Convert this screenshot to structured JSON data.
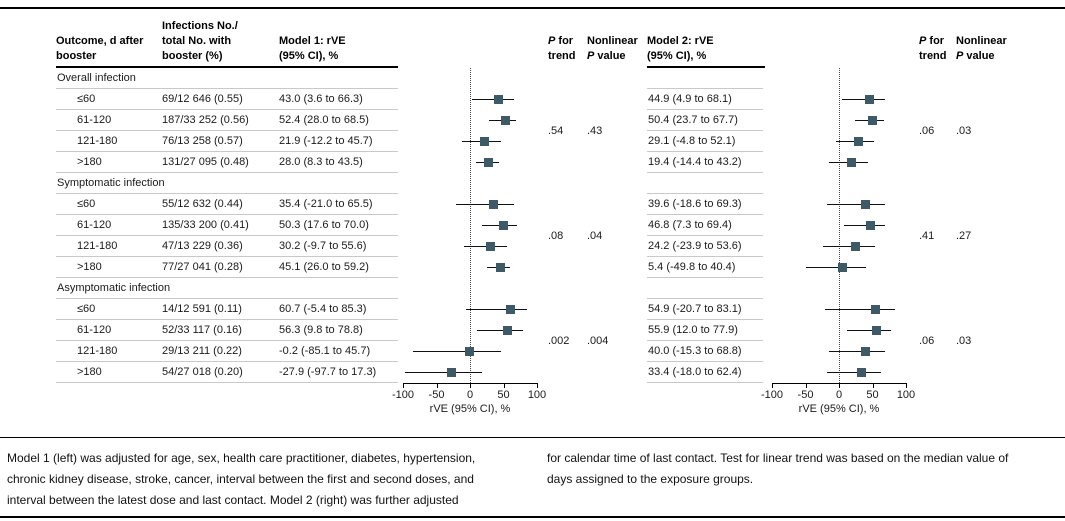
{
  "colors": {
    "marker": "#3e5a66",
    "ci_line": "#111111",
    "separator": "#c9c9c9",
    "rule": "#000000",
    "zero_line": "#444444"
  },
  "header": {
    "outcome": [
      "Outcome, d after",
      "booster"
    ],
    "infections": [
      "Infections No./",
      "total No. with",
      "booster (%)"
    ],
    "model1": [
      "Model 1: rVE",
      "(95% CI), %"
    ],
    "model2": [
      "Model 2: rVE",
      "(95% CI), %"
    ],
    "p": "P",
    "for_suffix": " for",
    "trend": "trend",
    "nonlinear": "Nonlinear",
    "value_suffix": " value"
  },
  "table": {
    "sections": [
      {
        "label": "Overall infection",
        "rows": [
          {
            "outcome": "≤60",
            "infections": "69/12 646 (0.55)",
            "m1": "43.0 (3.6 to 66.3)",
            "m2": "44.9 (4.9 to 68.1)"
          },
          {
            "outcome": "61-120",
            "infections": "187/33 252 (0.56)",
            "m1": "52.4 (28.0 to 68.5)",
            "m2": "50.4 (23.7 to 67.7)"
          },
          {
            "outcome": "121-180",
            "infections": "76/13 258 (0.57)",
            "m1": "21.9 (-12.2 to 45.7)",
            "m2": "29.1 (-4.8 to 52.1)"
          },
          {
            "outcome": ">180",
            "infections": "131/27 095 (0.48)",
            "m1": "28.0 (8.3 to 43.5)",
            "m2": "19.4 (-14.4 to 43.2)"
          }
        ]
      },
      {
        "label": "Symptomatic infection",
        "rows": [
          {
            "outcome": "≤60",
            "infections": "55/12 632 (0.44)",
            "m1": "35.4 (-21.0 to 65.5)",
            "m2": "39.6 (-18.6 to 69.3)"
          },
          {
            "outcome": "61-120",
            "infections": "135/33 200 (0.41)",
            "m1": "50.3 (17.6 to 70.0)",
            "m2": "46.8 (7.3 to 69.4)"
          },
          {
            "outcome": "121-180",
            "infections": "47/13 229 (0.36)",
            "m1": "30.2 (-9.7 to 55.6)",
            "m2": "24.2 (-23.9 to 53.6)"
          },
          {
            "outcome": ">180",
            "infections": "77/27 041 (0.28)",
            "m1": "45.1 (26.0 to 59.2)",
            "m2": "5.4 (-49.8 to 40.4)"
          }
        ]
      },
      {
        "label": "Asymptomatic infection",
        "rows": [
          {
            "outcome": "≤60",
            "infections": "14/12 591 (0.11)",
            "m1": "60.7 (-5.4 to 85.3)",
            "m2": "54.9 (-20.7 to 83.1)"
          },
          {
            "outcome": "61-120",
            "infections": "52/33 117 (0.16)",
            "m1": "56.3 (9.8 to 78.8)",
            "m2": "55.9 (12.0 to 77.9)"
          },
          {
            "outcome": "121-180",
            "infections": "29/13 211 (0.22)",
            "m1": "-0.2 (-85.1 to 45.7)",
            "m2": "40.0 (-15.3 to 68.8)"
          },
          {
            "outcome": ">180",
            "infections": "54/27 018 (0.20)",
            "m1": "-27.9 (-97.7 to 17.3)",
            "m2": "33.4 (-18.0 to 62.4)"
          }
        ]
      }
    ]
  },
  "chart_data": [
    {
      "type": "forest",
      "model": "Model 1",
      "xlabel": "rVE (95% CI), %",
      "xlim": [
        -100,
        100
      ],
      "ticks": [
        -100,
        -50,
        0,
        50,
        100
      ],
      "zero_reference": 0,
      "groups": [
        {
          "section": "Overall infection",
          "p_trend": ".54",
          "p_nonlinear": ".43",
          "points": [
            {
              "label": "≤60",
              "est": 43.0,
              "lo": 3.6,
              "hi": 66.3
            },
            {
              "label": "61-120",
              "est": 52.4,
              "lo": 28.0,
              "hi": 68.5
            },
            {
              "label": "121-180",
              "est": 21.9,
              "lo": -12.2,
              "hi": 45.7
            },
            {
              "label": ">180",
              "est": 28.0,
              "lo": 8.3,
              "hi": 43.5
            }
          ]
        },
        {
          "section": "Symptomatic infection",
          "p_trend": ".08",
          "p_nonlinear": ".04",
          "points": [
            {
              "label": "≤60",
              "est": 35.4,
              "lo": -21.0,
              "hi": 65.5
            },
            {
              "label": "61-120",
              "est": 50.3,
              "lo": 17.6,
              "hi": 70.0
            },
            {
              "label": "121-180",
              "est": 30.2,
              "lo": -9.7,
              "hi": 55.6
            },
            {
              "label": ">180",
              "est": 45.1,
              "lo": 26.0,
              "hi": 59.2
            }
          ]
        },
        {
          "section": "Asymptomatic infection",
          "p_trend": ".002",
          "p_nonlinear": ".004",
          "points": [
            {
              "label": "≤60",
              "est": 60.7,
              "lo": -5.4,
              "hi": 85.3
            },
            {
              "label": "61-120",
              "est": 56.3,
              "lo": 9.8,
              "hi": 78.8
            },
            {
              "label": "121-180",
              "est": -0.2,
              "lo": -85.1,
              "hi": 45.7
            },
            {
              "label": ">180",
              "est": -27.9,
              "lo": -97.7,
              "hi": 17.3
            }
          ]
        }
      ]
    },
    {
      "type": "forest",
      "model": "Model 2",
      "xlabel": "rVE (95% CI), %",
      "xlim": [
        -100,
        100
      ],
      "ticks": [
        -100,
        -50,
        0,
        50,
        100
      ],
      "zero_reference": 0,
      "groups": [
        {
          "section": "Overall infection",
          "p_trend": ".06",
          "p_nonlinear": ".03",
          "points": [
            {
              "label": "≤60",
              "est": 44.9,
              "lo": 4.9,
              "hi": 68.1
            },
            {
              "label": "61-120",
              "est": 50.4,
              "lo": 23.7,
              "hi": 67.7
            },
            {
              "label": "121-180",
              "est": 29.1,
              "lo": -4.8,
              "hi": 52.1
            },
            {
              "label": ">180",
              "est": 19.4,
              "lo": -14.4,
              "hi": 43.2
            }
          ]
        },
        {
          "section": "Symptomatic infection",
          "p_trend": ".41",
          "p_nonlinear": ".27",
          "points": [
            {
              "label": "≤60",
              "est": 39.6,
              "lo": -18.6,
              "hi": 69.3
            },
            {
              "label": "61-120",
              "est": 46.8,
              "lo": 7.3,
              "hi": 69.4
            },
            {
              "label": "121-180",
              "est": 24.2,
              "lo": -23.9,
              "hi": 53.6
            },
            {
              "label": ">180",
              "est": 5.4,
              "lo": -49.8,
              "hi": 40.4
            }
          ]
        },
        {
          "section": "Asymptomatic infection",
          "p_trend": ".06",
          "p_nonlinear": ".03",
          "points": [
            {
              "label": "≤60",
              "est": 54.9,
              "lo": -20.7,
              "hi": 83.1
            },
            {
              "label": "61-120",
              "est": 55.9,
              "lo": 12.0,
              "hi": 77.9
            },
            {
              "label": "121-180",
              "est": 40.0,
              "lo": -15.3,
              "hi": 68.8
            },
            {
              "label": ">180",
              "est": 33.4,
              "lo": -18.0,
              "hi": 62.4
            }
          ]
        }
      ]
    }
  ],
  "footnote": {
    "left": [
      "Model 1 (left) was adjusted for age, sex, health care practitioner, diabetes, hypertension,",
      "chronic kidney disease, stroke, cancer, interval between the first and second doses, and",
      "interval between the latest dose and last contact. Model 2 (right) was further adjusted"
    ],
    "right": [
      "for calendar time of last contact. Test for linear trend was based on the median value of",
      "days assigned to the exposure groups."
    ]
  }
}
